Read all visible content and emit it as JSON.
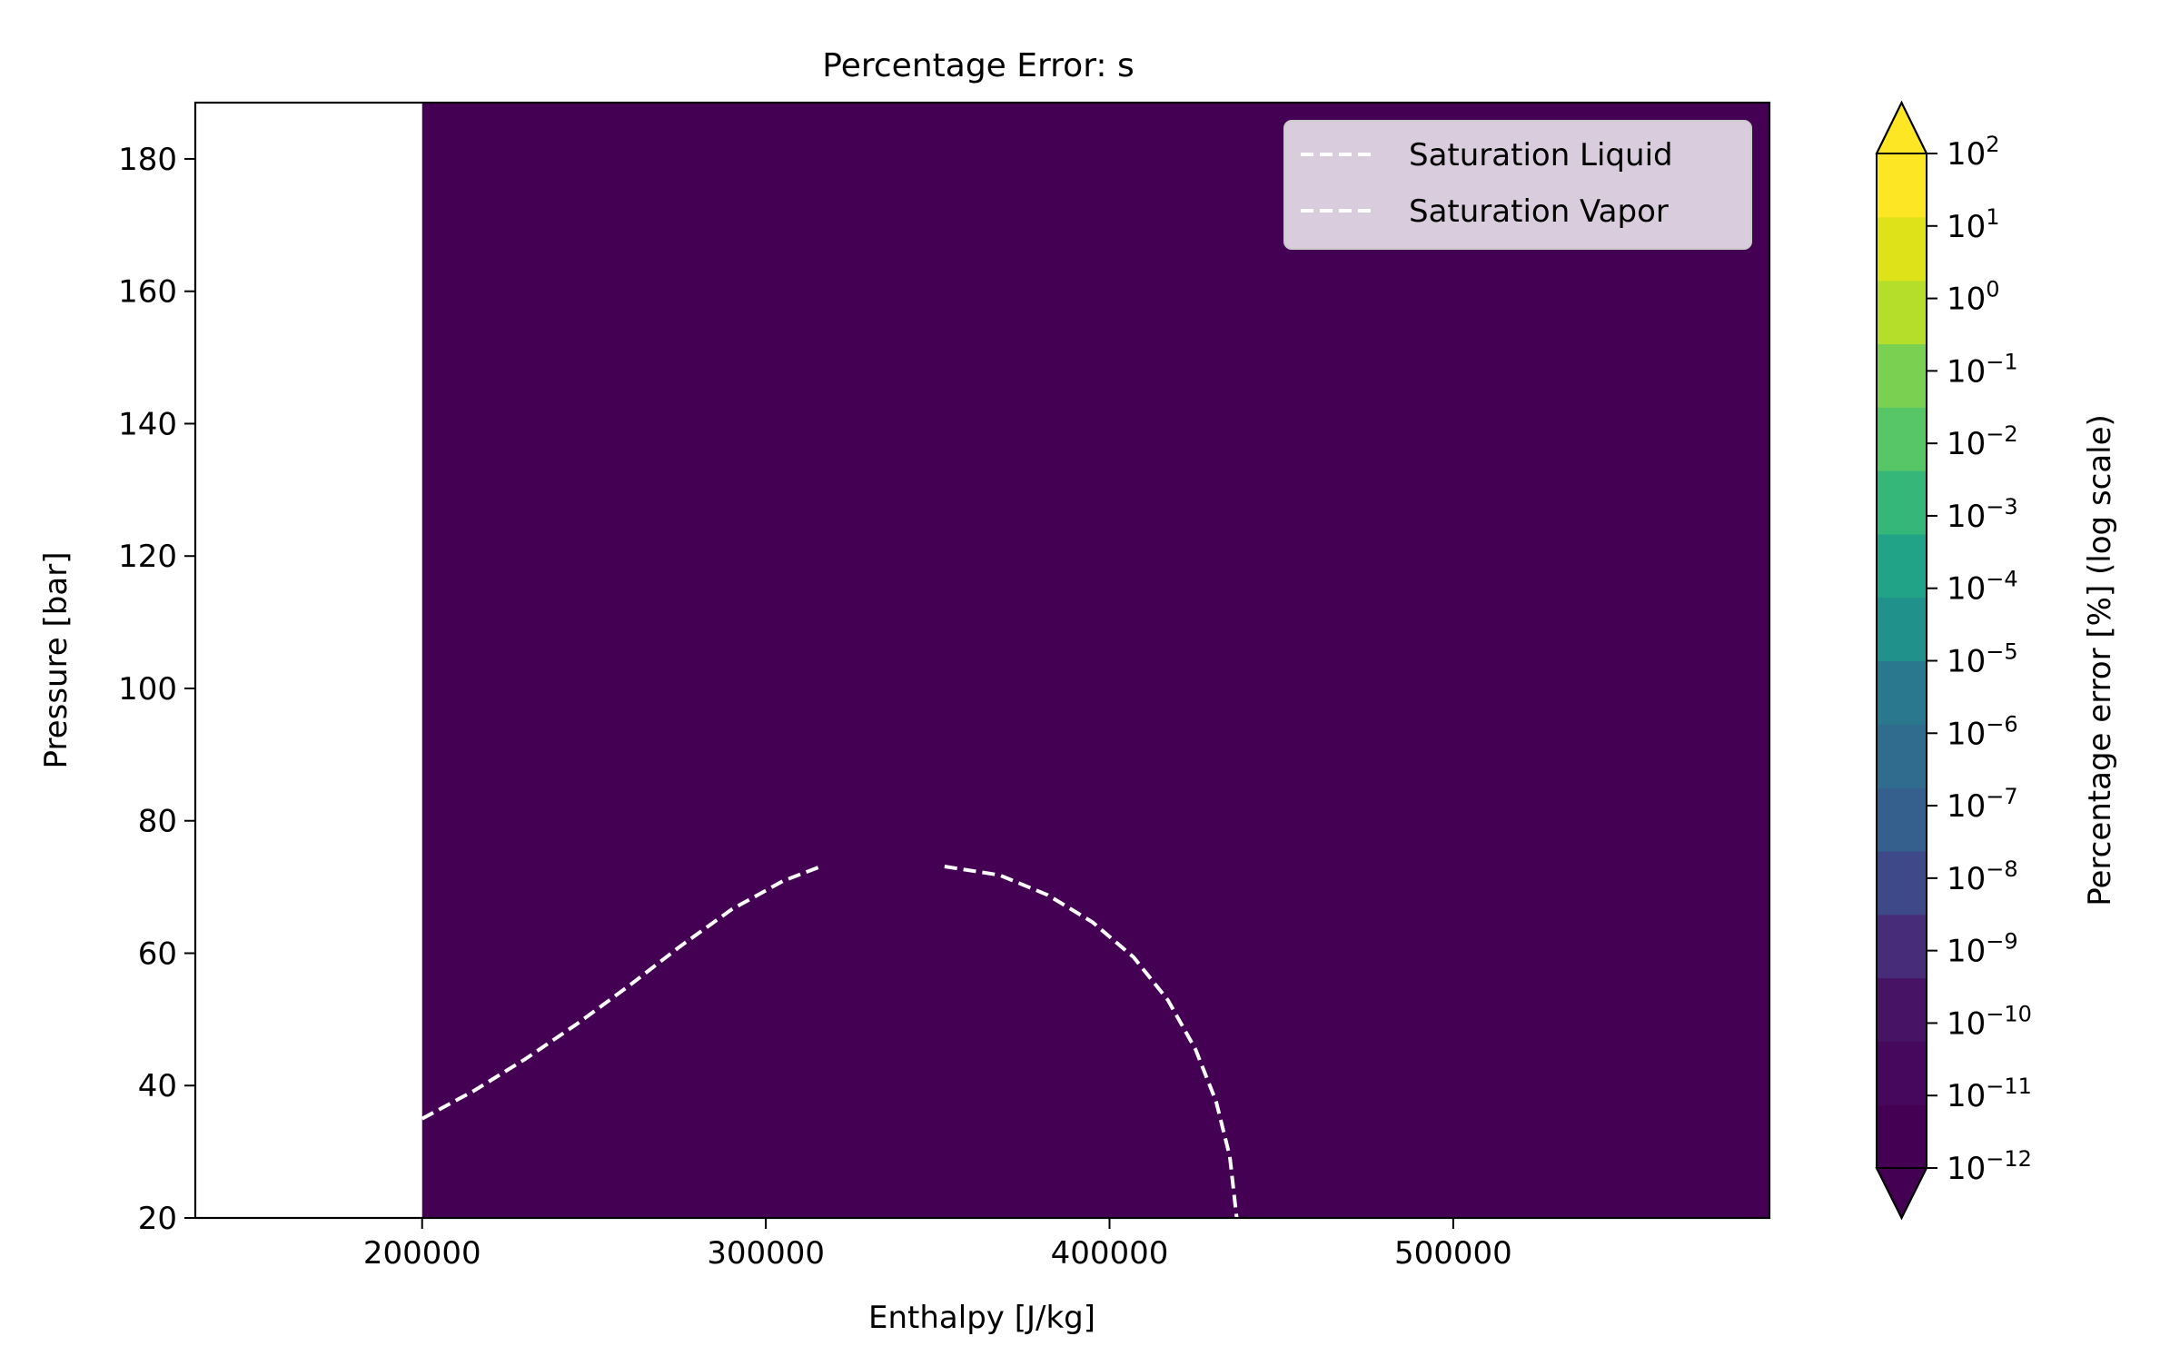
{
  "chart_data": {
    "type": "heatmap",
    "title": "Percentage Error: s",
    "xlabel": "Enthalpy [J/kg]",
    "ylabel": "Pressure [bar]",
    "xlim": [
      134000,
      592000
    ],
    "ylim": [
      20,
      188.5
    ],
    "x_ticks": [
      200000,
      300000,
      400000,
      500000
    ],
    "x_tick_labels": [
      "200000",
      "300000",
      "400000",
      "500000"
    ],
    "y_ticks": [
      20,
      40,
      60,
      80,
      100,
      120,
      140,
      160,
      180
    ],
    "y_tick_labels": [
      "20",
      "40",
      "60",
      "80",
      "100",
      "120",
      "140",
      "160",
      "180"
    ],
    "grid": false,
    "filled_region": {
      "x_range": [
        200000,
        592000
      ],
      "y_range": [
        20,
        188.5
      ],
      "level_label": "10⁻¹²",
      "color": "#440154"
    },
    "series": [
      {
        "name": "Saturation Liquid",
        "style": "dashed",
        "color": "#ffffff",
        "x": [
          200000,
          215000,
          230000,
          245000,
          260000,
          275000,
          290000,
          305000,
          316000
        ],
        "y": [
          35.0,
          39.2,
          44.0,
          49.3,
          55.0,
          61.0,
          66.6,
          70.9,
          73.1
        ]
      },
      {
        "name": "Saturation Vapor",
        "style": "dashed",
        "color": "#ffffff",
        "x": [
          352000,
          368000,
          382000,
          395000,
          407000,
          417000,
          425000,
          431000,
          435000,
          437000
        ],
        "y": [
          73.1,
          71.8,
          68.8,
          64.7,
          59.4,
          52.9,
          45.5,
          37.6,
          29.3,
          20.0
        ]
      }
    ],
    "legend": {
      "placement": "top-right",
      "entries": [
        "Saturation Liquid",
        "Saturation Vapor"
      ]
    },
    "colorbar": {
      "label": "Percentage error [%] (log scale)",
      "scale": "log",
      "range": [
        1e-12,
        100
      ],
      "extend": "both",
      "tick_bases": [
        "10",
        "10",
        "10",
        "10",
        "10",
        "10",
        "10",
        "10",
        "10",
        "10",
        "10",
        "10",
        "10",
        "10",
        "10"
      ],
      "tick_exponents": [
        "2",
        "1",
        "0",
        "−1",
        "−2",
        "−3",
        "−4",
        "−5",
        "−6",
        "−7",
        "−8",
        "−9",
        "−10",
        "−11",
        "−12"
      ],
      "colors": [
        "#440154",
        "#46085c",
        "#471365",
        "#472c7a",
        "#3e4989",
        "#355f8d",
        "#2f6c8e",
        "#2a788e",
        "#21918c",
        "#20a386",
        "#35b779",
        "#56c667",
        "#7ad151",
        "#b5de2b",
        "#dde318",
        "#fde725"
      ],
      "under_color": "#440154",
      "over_color": "#fde725"
    }
  }
}
